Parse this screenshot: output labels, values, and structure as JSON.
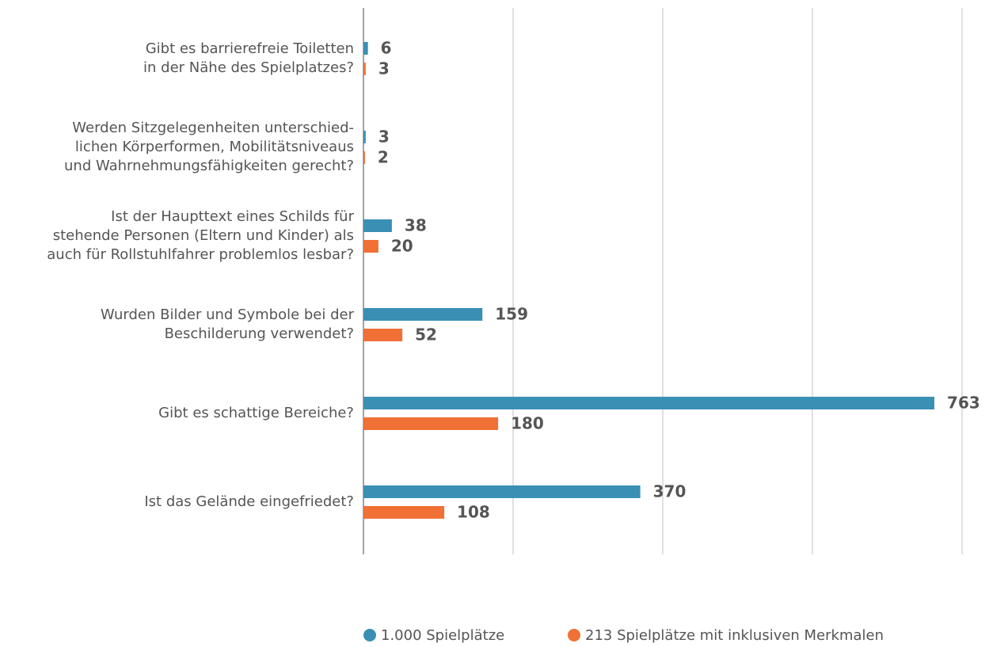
{
  "chart_data": {
    "type": "hbar",
    "categories": [
      "Gibt es barrierefreie Toiletten\nin der Nähe des Spielplatzes?",
      "Werden Sitzgelegenheiten unterschied-\nlichen Körperformen, Mobilitätsniveaus\nund Wahrnehmungsfähigkeiten gerecht?",
      "Ist der Haupttext eines Schilds für\nstehende Personen (Eltern und Kinder) als\nauch für Rollstuhlfahrer problemlos lesbar?",
      "Wurden Bilder und Symbole bei der\nBeschilderung verwendet?",
      "Gibt es schattige Bereiche?",
      "Ist das Gelände eingefriedet?"
    ],
    "series": [
      {
        "name": "1.000 Spielplätze",
        "color": "#3a8fb5",
        "values": [
          6,
          3,
          38,
          159,
          763,
          370
        ]
      },
      {
        "name": "213 Spielplätze mit inklusiven Merkmalen",
        "color": "#f07036",
        "values": [
          3,
          2,
          20,
          52,
          180,
          108
        ]
      }
    ],
    "xlim": [
      0,
      800
    ],
    "xticks": [
      0,
      200,
      400,
      600,
      800
    ],
    "grid": true
  }
}
